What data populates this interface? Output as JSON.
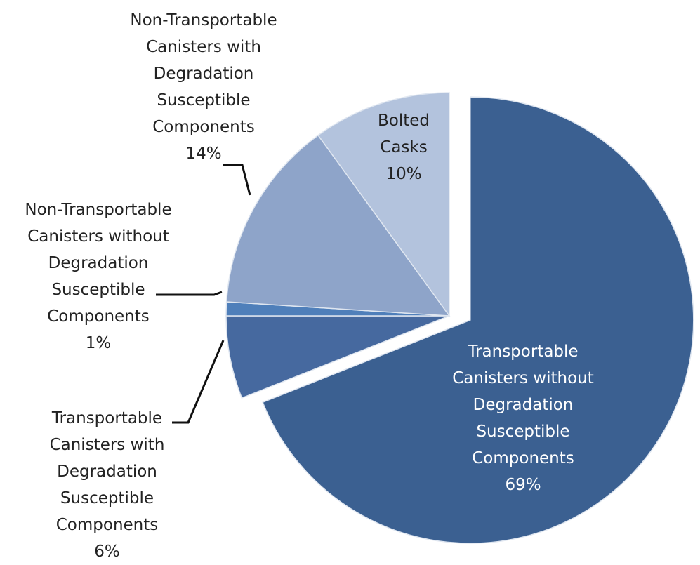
{
  "chart_data": {
    "type": "pie",
    "categories": [
      "Transportable Canisters without Degradation Susceptible Components",
      "Transportable Canisters with Degradation Susceptible Components",
      "Non-Transportable Canisters without Degradation Susceptible Components",
      "Non-Transportable Canisters with Degradation Susceptible Components",
      "Bolted Casks"
    ],
    "values": [
      69,
      6,
      1,
      14,
      10
    ],
    "value_labels": [
      "69%",
      "6%",
      "1%",
      "14%",
      "10%"
    ],
    "colors": [
      "#3b6091",
      "#46699f",
      "#4f7fba",
      "#8ea4c9",
      "#b3c3dd"
    ]
  }
}
